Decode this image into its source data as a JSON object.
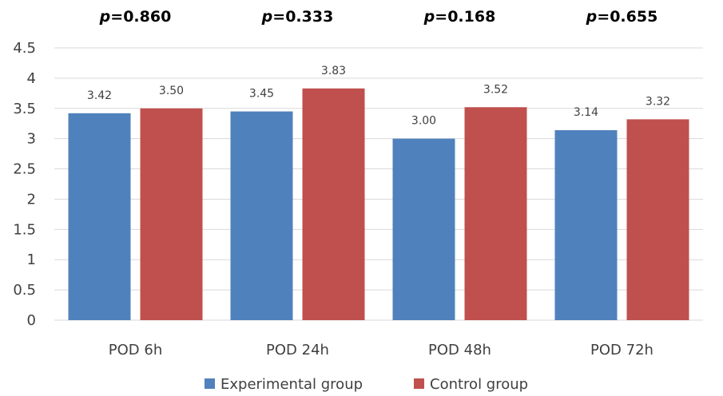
{
  "chart_data": {
    "type": "bar",
    "categories": [
      "POD 6h",
      "POD 24h",
      "POD 48h",
      "POD 72h"
    ],
    "series": [
      {
        "name": "Experimental group",
        "values": [
          3.42,
          3.45,
          3.0,
          3.14
        ],
        "labels": [
          "3.42",
          "3.45",
          "3.00",
          "3.14"
        ],
        "color": "#4f81bd"
      },
      {
        "name": "Control group",
        "values": [
          3.5,
          3.83,
          3.52,
          3.32
        ],
        "labels": [
          "3.50",
          "3.83",
          "3.52",
          "3.32"
        ],
        "color": "#c0504d"
      }
    ],
    "annotations": [
      {
        "category": "POD 6h",
        "prefix": "p",
        "text": "=0.860"
      },
      {
        "category": "POD 24h",
        "prefix": "p",
        "text": "=0.333"
      },
      {
        "category": "POD 48h",
        "prefix": "p",
        "text": "=0.168"
      },
      {
        "category": "POD 72h",
        "prefix": "p",
        "text": "=0.655"
      }
    ],
    "yticks": [
      "0",
      "0.5",
      "1",
      "1.5",
      "2",
      "2.5",
      "3",
      "3.5",
      "4",
      "4.5"
    ],
    "ylim": [
      0,
      4.5
    ],
    "grid": true,
    "gridline_color": "#d9d9d9",
    "legend": "bottom"
  }
}
